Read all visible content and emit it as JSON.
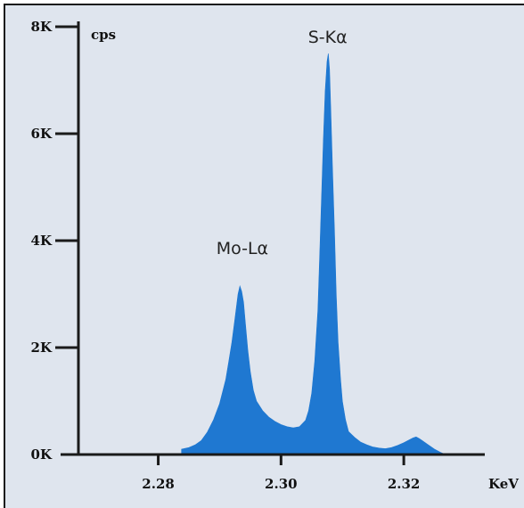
{
  "chart_data": {
    "type": "area",
    "title": "",
    "xlabel": "KeV",
    "ylabel": "cps",
    "xlim": [
      2.267,
      2.339
    ],
    "ylim": [
      0,
      8000
    ],
    "grid": false,
    "legend": "none",
    "colors": {
      "fill": "#1f78d1",
      "background": "#dfe5ee",
      "axis": "#1a1a1a"
    },
    "x_ticks": [
      {
        "value": 2.28,
        "label": "2.28"
      },
      {
        "value": 2.3,
        "label": "2.30"
      },
      {
        "value": 2.32,
        "label": "2.32"
      }
    ],
    "y_ticks": [
      {
        "value": 0,
        "label": "0K"
      },
      {
        "value": 2000,
        "label": "2K"
      },
      {
        "value": 4000,
        "label": "4K"
      },
      {
        "value": 6000,
        "label": "6K"
      },
      {
        "value": 8000,
        "label": "8K"
      }
    ],
    "annotations": [
      {
        "text": "Mo-Lα",
        "x": 2.2937,
        "y": 3750
      },
      {
        "text": "S-Kα",
        "x": 2.3076,
        "y": 7700
      }
    ],
    "series": [
      {
        "x": [
          2.2838,
          2.285,
          2.286,
          2.287,
          2.288,
          2.289,
          2.29,
          2.291,
          2.2915,
          2.292,
          2.2925,
          2.293,
          2.2933,
          2.2936,
          2.2939,
          2.2942,
          2.2946,
          2.295,
          2.2955,
          2.296,
          2.297,
          2.298,
          2.299,
          2.3,
          2.301,
          2.302,
          2.303,
          2.304,
          2.3045,
          2.305,
          2.3055,
          2.306,
          2.3063,
          2.3066,
          2.3069,
          2.3072,
          2.3075,
          2.3077,
          2.3079,
          2.3081,
          2.3084,
          2.3087,
          2.309,
          2.3093,
          2.3097,
          2.31,
          2.3105,
          2.311,
          2.312,
          2.313,
          2.314,
          2.315,
          2.316,
          2.317,
          2.318,
          2.319,
          2.32,
          2.321,
          2.3215,
          2.322,
          2.3225,
          2.323,
          2.324,
          2.325,
          2.326,
          2.3268
        ],
        "y": [
          100,
          130,
          180,
          260,
          420,
          650,
          950,
          1400,
          1750,
          2100,
          2550,
          3000,
          3150,
          3050,
          2850,
          2450,
          1950,
          1550,
          1200,
          1000,
          820,
          700,
          620,
          560,
          520,
          500,
          520,
          640,
          820,
          1150,
          1750,
          2700,
          3700,
          4800,
          5900,
          6800,
          7350,
          7500,
          7200,
          6500,
          5300,
          4200,
          3000,
          2100,
          1400,
          1000,
          650,
          430,
          320,
          230,
          180,
          140,
          120,
          110,
          130,
          170,
          220,
          280,
          310,
          330,
          300,
          260,
          180,
          100,
          40,
          0
        ]
      }
    ]
  }
}
